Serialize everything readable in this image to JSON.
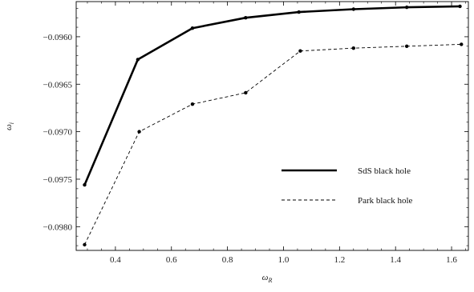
{
  "chart_data": {
    "type": "line",
    "xlabel": "ω",
    "xlabel_sub": "R",
    "ylabel": "ω",
    "ylabel_sub": "i",
    "xlim": [
      0.26,
      1.66
    ],
    "ylim": [
      -0.09825,
      -0.09563
    ],
    "x_ticks": [
      0.4,
      0.6,
      0.8,
      1.0,
      1.2,
      1.4,
      1.6
    ],
    "x_tick_labels": [
      "0.4",
      "0.6",
      "0.8",
      "1.0",
      "1.2",
      "1.4",
      "1.6"
    ],
    "y_ticks": [
      -0.096,
      -0.0965,
      -0.097,
      -0.0975,
      -0.098
    ],
    "y_tick_labels": [
      "−0.0960",
      "−0.0965",
      "−0.0970",
      "−0.0975",
      "−0.0980"
    ],
    "grid": false,
    "legend_position": "right",
    "series": [
      {
        "name": "SdS black hole",
        "style": "solid",
        "color": "#000000",
        "x": [
          0.29,
          0.48,
          0.675,
          0.865,
          1.055,
          1.25,
          1.44,
          1.63
        ],
        "y": [
          -0.09756,
          -0.09624,
          -0.09591,
          -0.0958,
          -0.09574,
          -0.09571,
          -0.09569,
          -0.09568
        ]
      },
      {
        "name": "Park black hole",
        "style": "dashed",
        "color": "#000000",
        "x": [
          0.29,
          0.485,
          0.675,
          0.865,
          1.06,
          1.25,
          1.44,
          1.635
        ],
        "y": [
          -0.09819,
          -0.097,
          -0.09671,
          -0.09659,
          -0.09615,
          -0.09612,
          -0.0961,
          -0.09608
        ]
      }
    ]
  }
}
